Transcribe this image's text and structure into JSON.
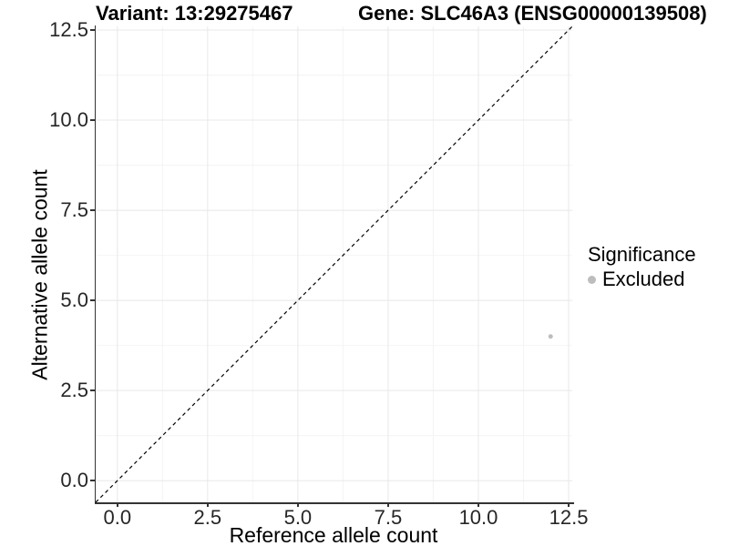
{
  "header": {
    "variant_title": "Variant: 13:29275467",
    "gene_title": "Gene: SLC46A3 (ENSG00000139508)"
  },
  "axes": {
    "x": {
      "label": "Reference allele count"
    },
    "y": {
      "label": "Alternative allele count"
    }
  },
  "legend": {
    "title": "Significance",
    "items": [
      {
        "label": "Excluded",
        "color": "#bdbdbd"
      }
    ]
  },
  "chart_data": {
    "type": "scatter",
    "title": "Variant: 13:29275467 | Gene: SLC46A3 (ENSG00000139508)",
    "xlabel": "Reference allele count",
    "ylabel": "Alternative allele count",
    "xlim": [
      -0.6,
      12.6
    ],
    "ylim": [
      -0.6,
      12.6
    ],
    "x_ticks": [
      0,
      2.5,
      5,
      7.5,
      10,
      12.5
    ],
    "y_ticks": [
      0,
      2.5,
      5,
      7.5,
      10,
      12.5
    ],
    "x_minor_ticks": [
      1.25,
      3.75,
      6.25,
      8.75,
      11.25
    ],
    "y_minor_ticks": [
      1.25,
      3.75,
      6.25,
      8.75,
      11.25
    ],
    "grid": "major+minor",
    "legend_position": "right",
    "legend_title": "Significance",
    "series": [
      {
        "name": "Excluded",
        "color": "#bdbdbd",
        "point_radius": 2.5,
        "points": [
          {
            "x": 12,
            "y": 4
          }
        ]
      }
    ],
    "reference_line": {
      "type": "identity y=x",
      "style": "dashed",
      "color": "#000000",
      "x0": -0.6,
      "y0": -0.6,
      "x1": 12.6,
      "y1": 12.6
    }
  },
  "style": {
    "background": "#ffffff",
    "axis_line_color": "#333333",
    "grid_major_color": "#e8e8e8",
    "grid_minor_color": "#f4f4f4",
    "dashed_line_color": "#000000",
    "point_color": "#bdbdbd",
    "tick_text_color": "#262626"
  }
}
